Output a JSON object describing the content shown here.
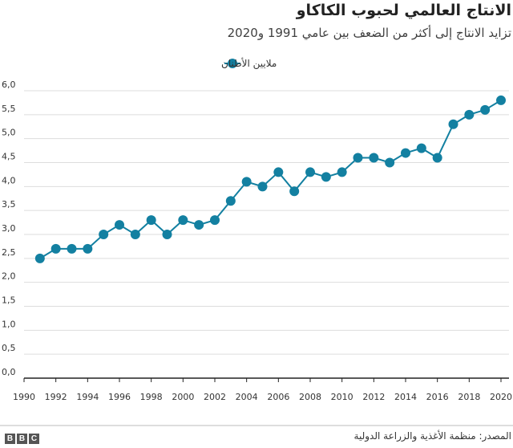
{
  "chart_data": {
    "type": "line",
    "title": "الانتاج العالمي لحبوب الكاكاو",
    "subtitle": "تزايد الانتاج إلى أكثر من الضعف بين عامي 1991 و2020",
    "legend": {
      "placement": "top-center",
      "entries": [
        "ملايين الأطنان"
      ]
    },
    "series": [
      {
        "name": "ملايين الأطنان",
        "color": "#1380A1",
        "x": [
          1991,
          1992,
          1993,
          1994,
          1995,
          1996,
          1997,
          1998,
          1999,
          2000,
          2001,
          2002,
          2003,
          2004,
          2005,
          2006,
          2007,
          2008,
          2009,
          2010,
          2011,
          2012,
          2013,
          2014,
          2015,
          2016,
          2017,
          2018,
          2019,
          2020
        ],
        "values": [
          2.5,
          2.7,
          2.7,
          2.7,
          3.0,
          3.2,
          3.0,
          3.3,
          3.0,
          3.3,
          3.2,
          3.3,
          3.7,
          4.1,
          4.0,
          4.3,
          3.9,
          4.3,
          4.2,
          4.3,
          4.6,
          4.6,
          4.5,
          4.7,
          4.8,
          4.6,
          5.3,
          5.5,
          5.6,
          5.8
        ]
      }
    ],
    "xlim": [
      1990,
      2020
    ],
    "ylim": [
      0,
      6
    ],
    "x_ticks": [
      "1990",
      "1992",
      "1994",
      "1996",
      "1998",
      "2000",
      "2002",
      "2004",
      "2006",
      "2008",
      "2010",
      "2012",
      "2014",
      "2016",
      "2018",
      "2020"
    ],
    "y_ticks": [
      "0,0",
      "0,5",
      "1,0",
      "1,5",
      "2,0",
      "2,5",
      "3,0",
      "3,5",
      "4,0",
      "4,5",
      "5,0",
      "5,5",
      "6,0"
    ],
    "grid": "horizontal"
  },
  "source": "المصدر: منظمة الأغذية والزراعة الدولية",
  "logo": [
    "B",
    "B",
    "C"
  ]
}
